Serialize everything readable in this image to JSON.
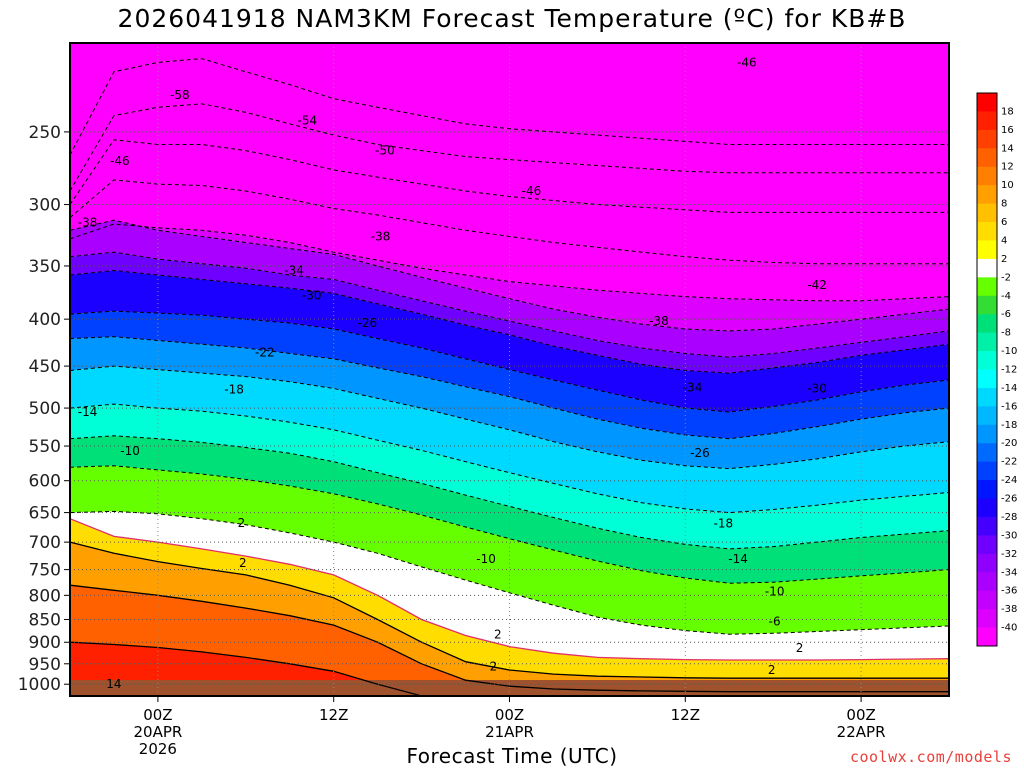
{
  "title": "2026041918 NAM3KM Forecast Temperature (ºC) for KB#B",
  "credit": "coolwx.com/models",
  "chart_data": {
    "type": "heatmap",
    "title": "2026041918 NAM3KM Forecast Temperature (ºC) for KB#B",
    "xlabel": "Forecast Time (UTC)",
    "ylabel": "",
    "x_ticks": [
      {
        "hour": 6,
        "label": "00Z",
        "date": "20APR",
        "year": "2026"
      },
      {
        "hour": 18,
        "label": "12Z",
        "date": "",
        "year": ""
      },
      {
        "hour": 30,
        "label": "00Z",
        "date": "21APR",
        "year": ""
      },
      {
        "hour": 42,
        "label": "12Z",
        "date": "",
        "year": ""
      },
      {
        "hour": 54,
        "label": "00Z",
        "date": "22APR",
        "year": ""
      }
    ],
    "x_range_hours": [
      0,
      60
    ],
    "y_ticks": [
      250,
      300,
      350,
      400,
      450,
      500,
      550,
      600,
      650,
      700,
      750,
      800,
      850,
      900,
      950,
      1000
    ],
    "y_range_hpa": [
      200,
      1030
    ],
    "colorbar": {
      "levels": [
        -40,
        -38,
        -36,
        -34,
        -32,
        -30,
        -28,
        -26,
        -24,
        -22,
        -20,
        -18,
        -16,
        -14,
        -12,
        -10,
        -8,
        -6,
        -4,
        -2,
        2,
        4,
        6,
        8,
        10,
        12,
        14,
        16,
        18
      ],
      "colors": [
        "#ff00ff",
        "#dd00ff",
        "#c300ff",
        "#a900ff",
        "#8f00ff",
        "#6f00ff",
        "#4400ff",
        "#1c00ff",
        "#0016ff",
        "#0040ff",
        "#006aff",
        "#0096ff",
        "#00b8ff",
        "#00d9ff",
        "#00ffff",
        "#00ffd6",
        "#00f0a8",
        "#00e078",
        "#33dd33",
        "#66ff00",
        "#ffffff",
        "#ffff00",
        "#ffdd00",
        "#ffc000",
        "#ffa000",
        "#ff8000",
        "#ff6000",
        "#ff4000",
        "#ff2000",
        "#ff0000"
      ]
    },
    "isotherms": [
      {
        "temp": -58,
        "p": [
          265,
          215,
          210,
          208,
          215,
          222,
          230,
          235,
          240,
          245,
          248,
          250,
          252,
          254,
          256,
          258,
          258,
          258,
          258,
          258,
          258
        ]
      },
      {
        "temp": -54,
        "p": [
          290,
          240,
          235,
          233,
          238,
          245,
          252,
          258,
          262,
          266,
          268,
          270,
          272,
          274,
          276,
          277,
          277,
          277,
          277,
          277,
          277
        ]
      },
      {
        "temp": -50,
        "p": [
          300,
          255,
          258,
          258,
          262,
          268,
          275,
          280,
          285,
          290,
          294,
          297,
          300,
          302,
          304,
          306,
          306,
          306,
          306,
          306,
          306
        ]
      },
      {
        "temp": -46,
        "p": [
          310,
          282,
          285,
          286,
          290,
          296,
          303,
          308,
          314,
          320,
          325,
          330,
          334,
          338,
          342,
          345,
          347,
          348,
          348,
          348,
          348
        ]
      },
      {
        "temp": -42,
        "p": [
          327,
          315,
          318,
          320,
          324,
          330,
          338,
          345,
          352,
          358,
          364,
          368,
          372,
          375,
          378,
          380,
          381,
          382,
          382,
          380,
          378
        ]
      },
      {
        "temp": -38,
        "p": [
          320,
          312,
          320,
          325,
          330,
          335,
          340,
          350,
          360,
          370,
          380,
          390,
          398,
          405,
          410,
          412,
          410,
          405,
          400,
          395,
          390
        ]
      },
      {
        "temp": -34,
        "p": [
          342,
          338,
          344,
          348,
          352,
          358,
          362,
          372,
          382,
          392,
          402,
          412,
          422,
          430,
          436,
          440,
          436,
          430,
          424,
          418,
          412
        ]
      },
      {
        "temp": -30,
        "p": [
          358,
          354,
          358,
          362,
          366,
          370,
          375,
          385,
          395,
          406,
          416,
          428,
          438,
          448,
          455,
          458,
          452,
          446,
          438,
          432,
          426
        ]
      },
      {
        "temp": -26,
        "p": [
          395,
          392,
          394,
          396,
          400,
          404,
          410,
          420,
          430,
          442,
          454,
          466,
          478,
          490,
          500,
          505,
          498,
          490,
          480,
          472,
          466
        ]
      },
      {
        "temp": -22,
        "p": [
          420,
          418,
          422,
          426,
          430,
          436,
          442,
          452,
          462,
          474,
          486,
          500,
          514,
          526,
          535,
          540,
          533,
          524,
          514,
          506,
          500
        ]
      },
      {
        "temp": -18,
        "p": [
          455,
          450,
          454,
          458,
          462,
          468,
          476,
          488,
          500,
          514,
          528,
          544,
          558,
          570,
          578,
          582,
          576,
          568,
          558,
          550,
          544
        ]
      },
      {
        "temp": -14,
        "p": [
          500,
          495,
          500,
          504,
          510,
          518,
          528,
          542,
          556,
          572,
          588,
          604,
          620,
          634,
          644,
          650,
          645,
          638,
          630,
          624,
          618
        ]
      },
      {
        "temp": -10,
        "p": [
          540,
          536,
          540,
          545,
          552,
          560,
          572,
          588,
          604,
          622,
          640,
          658,
          676,
          692,
          704,
          712,
          708,
          700,
          692,
          686,
          680
        ]
      },
      {
        "temp": -6,
        "p": [
          580,
          578,
          584,
          590,
          598,
          608,
          620,
          636,
          654,
          674,
          694,
          714,
          734,
          752,
          766,
          776,
          774,
          768,
          762,
          756,
          750
        ]
      },
      {
        "temp": -2,
        "p": [
          650,
          648,
          652,
          660,
          670,
          684,
          700,
          720,
          745,
          770,
          795,
          820,
          845,
          862,
          874,
          882,
          880,
          876,
          872,
          868,
          864
        ]
      },
      {
        "temp": 2,
        "p": [
          660,
          690,
          700,
          712,
          725,
          740,
          760,
          800,
          850,
          885,
          910,
          925,
          935,
          938,
          940,
          941,
          941,
          941,
          940,
          939,
          938
        ]
      },
      {
        "temp": 6,
        "p": [
          700,
          720,
          735,
          748,
          760,
          780,
          805,
          850,
          900,
          945,
          965,
          975,
          980,
          982,
          984,
          985,
          985,
          985,
          985,
          985,
          985
        ]
      },
      {
        "temp": 10,
        "p": [
          780,
          790,
          800,
          812,
          826,
          842,
          862,
          900,
          950,
          990,
          1005,
          1012,
          1015,
          1017,
          1018,
          1019,
          1019,
          1019,
          1019,
          1019,
          1019
        ]
      },
      {
        "temp": 14,
        "p": [
          900,
          905,
          912,
          922,
          935,
          950,
          968,
          1000,
          1030,
          1030,
          1030,
          1030,
          1030,
          1030,
          1030,
          1030,
          1030,
          1030,
          1030,
          1030,
          1030
        ]
      }
    ],
    "labels": [
      {
        "text": "-58",
        "hour": 7.5,
        "p": 228
      },
      {
        "text": "-54",
        "hour": 16.2,
        "p": 243
      },
      {
        "text": "-50",
        "hour": 21.5,
        "p": 262
      },
      {
        "text": "-46",
        "hour": 31.5,
        "p": 290
      },
      {
        "text": "-46",
        "hour": 46.2,
        "p": 210
      },
      {
        "text": "-46",
        "hour": 3.4,
        "p": 269
      },
      {
        "text": "-42",
        "hour": 51.0,
        "p": 367
      },
      {
        "text": "-38",
        "hour": 1.2,
        "p": 314
      },
      {
        "text": "-38",
        "hour": 21.2,
        "p": 325
      },
      {
        "text": "-38",
        "hour": 40.2,
        "p": 402
      },
      {
        "text": "-34",
        "hour": 15.3,
        "p": 354
      },
      {
        "text": "-34",
        "hour": 42.5,
        "p": 475
      },
      {
        "text": "-30",
        "hour": 16.5,
        "p": 377
      },
      {
        "text": "-30",
        "hour": 51.0,
        "p": 476
      },
      {
        "text": "-26",
        "hour": 20.3,
        "p": 404
      },
      {
        "text": "-26",
        "hour": 43.0,
        "p": 560
      },
      {
        "text": "-22",
        "hour": 13.3,
        "p": 435
      },
      {
        "text": "-18",
        "hour": 11.2,
        "p": 477
      },
      {
        "text": "-18",
        "hour": 44.6,
        "p": 668
      },
      {
        "text": "-14",
        "hour": 1.2,
        "p": 505
      },
      {
        "text": "-14",
        "hour": 45.6,
        "p": 730
      },
      {
        "text": "-10",
        "hour": 4.1,
        "p": 557
      },
      {
        "text": "-10",
        "hour": 28.4,
        "p": 730
      },
      {
        "text": "-10",
        "hour": 48.1,
        "p": 792
      },
      {
        "text": "-6",
        "hour": 48.1,
        "p": 854
      },
      {
        "text": "2",
        "hour": 11.7,
        "p": 667
      },
      {
        "text": "2",
        "hour": 11.8,
        "p": 738
      },
      {
        "text": "2",
        "hour": 29.2,
        "p": 883
      },
      {
        "text": "2",
        "hour": 28.9,
        "p": 956
      },
      {
        "text": "2",
        "hour": 49.8,
        "p": 913
      },
      {
        "text": "2",
        "hour": 47.9,
        "p": 965
      },
      {
        "text": "14",
        "hour": 3.0,
        "p": 1000
      }
    ]
  }
}
